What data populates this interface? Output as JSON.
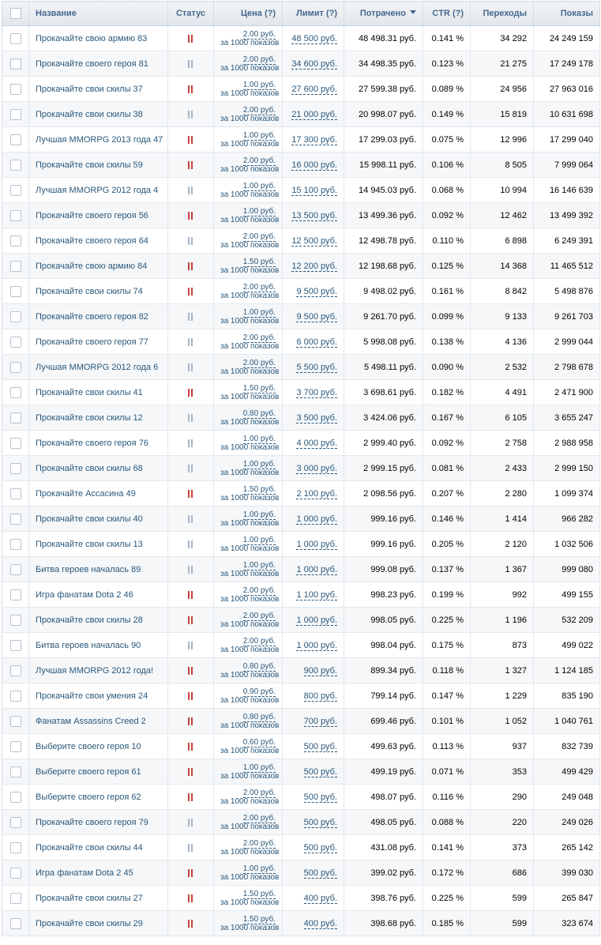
{
  "table": {
    "header": [
      "Название",
      "Статус",
      "Цена (?)",
      "Лимит (?)",
      "Потрачено",
      "CTR (?)",
      "Переходы",
      "Показы"
    ],
    "rows": [
      {
        "name": "Прокачайте свою армию 83",
        "status_color": "#c8413a",
        "price": "2.00 руб.",
        "price_note": "за 1000 показов",
        "limit": "48 500 руб.",
        "spent": "48 498.31 руб.",
        "ctr": "0.141 %",
        "clicks": "34 292",
        "shows": "24 249 159"
      },
      {
        "name": "Прокачайте своего героя 81",
        "status_color": "#a7b5c6",
        "price": "2.00 руб.",
        "price_note": "за 1000 показов",
        "limit": "34 600 руб.",
        "spent": "34 498.35 руб.",
        "ctr": "0.123 %",
        "clicks": "21 275",
        "shows": "17 249 178"
      },
      {
        "name": "Прокачайте свои скилы 37",
        "status_color": "#c8413a",
        "price": "1.00 руб.",
        "price_note": "за 1000 показов",
        "limit": "27 600 руб.",
        "spent": "27 599.38 руб.",
        "ctr": "0.089 %",
        "clicks": "24 956",
        "shows": "27 963 016"
      },
      {
        "name": "Прокачайте свои скилы 38",
        "status_color": "#a7b5c6",
        "price": "2.00 руб.",
        "price_note": "за 1000 показов",
        "limit": "21 000 руб.",
        "spent": "20 998.07 руб.",
        "ctr": "0.149 %",
        "clicks": "15 819",
        "shows": "10 631 698"
      },
      {
        "name": "Лучшая MMORPG 2013 года 47",
        "status_color": "#c8413a",
        "price": "1.00 руб.",
        "price_note": "за 1000 показов",
        "limit": "17 300 руб.",
        "spent": "17 299.03 руб.",
        "ctr": "0.075 %",
        "clicks": "12 996",
        "shows": "17 299 040"
      },
      {
        "name": "Прокачайте свои скилы 59",
        "status_color": "#c8413a",
        "price": "2.00 руб.",
        "price_note": "за 1000 показов",
        "limit": "16 000 руб.",
        "spent": "15 998.11 руб.",
        "ctr": "0.106 %",
        "clicks": "8 505",
        "shows": "7 999 064"
      },
      {
        "name": "Лучшая MMORPG 2012 года 4",
        "status_color": "#a7b5c6",
        "price": "1.00 руб.",
        "price_note": "за 1000 показов",
        "limit": "15 100 руб.",
        "spent": "14 945.03 руб.",
        "ctr": "0.068 %",
        "clicks": "10 994",
        "shows": "16 146 639"
      },
      {
        "name": "Прокачайте своего героя 56",
        "status_color": "#c8413a",
        "price": "1.00 руб.",
        "price_note": "за 1000 показов",
        "limit": "13 500 руб.",
        "spent": "13 499.36 руб.",
        "ctr": "0.092 %",
        "clicks": "12 462",
        "shows": "13 499 392"
      },
      {
        "name": "Прокачайте своего героя 64",
        "status_color": "#a7b5c6",
        "price": "2.00 руб.",
        "price_note": "за 1000 показов",
        "limit": "12 500 руб.",
        "spent": "12 498.78 руб.",
        "ctr": "0.110 %",
        "clicks": "6 898",
        "shows": "6 249 391"
      },
      {
        "name": "Прокачайте свою армию 84",
        "status_color": "#c8413a",
        "price": "1.50 руб.",
        "price_note": "за 1000 показов",
        "limit": "12 200 руб.",
        "spent": "12 198.68 руб.",
        "ctr": "0.125 %",
        "clicks": "14 368",
        "shows": "11 465 512"
      },
      {
        "name": "Прокачайте свои скилы 74",
        "status_color": "#c8413a",
        "price": "2.00 руб.",
        "price_note": "за 1000 показов",
        "limit": "9 500 руб.",
        "spent": "9 498.02 руб.",
        "ctr": "0.161 %",
        "clicks": "8 842",
        "shows": "5 498 876"
      },
      {
        "name": "Прокачайте своего героя 82",
        "status_color": "#a7b5c6",
        "price": "1.00 руб.",
        "price_note": "за 1000 показов",
        "limit": "9 500 руб.",
        "spent": "9 261.70 руб.",
        "ctr": "0.099 %",
        "clicks": "9 133",
        "shows": "9 261 703"
      },
      {
        "name": "Прокачайте своего героя 77",
        "status_color": "#a7b5c6",
        "price": "2.00 руб.",
        "price_note": "за 1000 показов",
        "limit": "6 000 руб.",
        "spent": "5 998.08 руб.",
        "ctr": "0.138 %",
        "clicks": "4 136",
        "shows": "2 999 044"
      },
      {
        "name": "Лучшая MMORPG 2012 года 6",
        "status_color": "#a7b5c6",
        "price": "2.00 руб.",
        "price_note": "за 1000 показов",
        "limit": "5 500 руб.",
        "spent": "5 498.11 руб.",
        "ctr": "0.090 %",
        "clicks": "2 532",
        "shows": "2 798 678"
      },
      {
        "name": "Прокачайте свои скилы 41",
        "status_color": "#c8413a",
        "price": "1.50 руб.",
        "price_note": "за 1000 показов",
        "limit": "3 700 руб.",
        "spent": "3 698.61 руб.",
        "ctr": "0.182 %",
        "clicks": "4 491",
        "shows": "2 471 900"
      },
      {
        "name": "Прокачайте свои скилы 12",
        "status_color": "#a7b5c6",
        "price": "0.80 руб.",
        "price_note": "за 1000 показов",
        "limit": "3 500 руб.",
        "spent": "3 424.06 руб.",
        "ctr": "0.167 %",
        "clicks": "6 105",
        "shows": "3 655 247"
      },
      {
        "name": "Прокачайте своего героя 76",
        "status_color": "#a7b5c6",
        "price": "1.00 руб.",
        "price_note": "за 1000 показов",
        "limit": "4 000 руб.",
        "spent": "2 999.40 руб.",
        "ctr": "0.092 %",
        "clicks": "2 758",
        "shows": "2 988 958"
      },
      {
        "name": "Прокачайте свои скилы 68",
        "status_color": "#a7b5c6",
        "price": "1.00 руб.",
        "price_note": "за 1000 показов",
        "limit": "3 000 руб.",
        "spent": "2 999.15 руб.",
        "ctr": "0.081 %",
        "clicks": "2 433",
        "shows": "2 999 150"
      },
      {
        "name": "Прокачайте Ассасина 49",
        "status_color": "#c8413a",
        "price": "1.50 руб.",
        "price_note": "за 1000 показов",
        "limit": "2 100 руб.",
        "spent": "2 098.56 руб.",
        "ctr": "0.207 %",
        "clicks": "2 280",
        "shows": "1 099 374"
      },
      {
        "name": "Прокачайте свои скилы 40",
        "status_color": "#a7b5c6",
        "price": "1.00 руб.",
        "price_note": "за 1000 показов",
        "limit": "1 000 руб.",
        "spent": "999.16 руб.",
        "ctr": "0.146 %",
        "clicks": "1 414",
        "shows": "966 282"
      },
      {
        "name": "Прокачайте свои скилы 13",
        "status_color": "#a7b5c6",
        "price": "1.00 руб.",
        "price_note": "за 1000 показов",
        "limit": "1 000 руб.",
        "spent": "999.16 руб.",
        "ctr": "0.205 %",
        "clicks": "2 120",
        "shows": "1 032 506"
      },
      {
        "name": "Битва героев началась 89",
        "status_color": "#a7b5c6",
        "price": "1.00 руб.",
        "price_note": "за 1000 показов",
        "limit": "1 000 руб.",
        "spent": "999.08 руб.",
        "ctr": "0.137 %",
        "clicks": "1 367",
        "shows": "999 080"
      },
      {
        "name": "Игра фанатам Dota 2 46",
        "status_color": "#c8413a",
        "price": "2.00 руб.",
        "price_note": "за 1000 показов",
        "limit": "1 100 руб.",
        "spent": "998.23 руб.",
        "ctr": "0.199 %",
        "clicks": "992",
        "shows": "499 155"
      },
      {
        "name": "Прокачайте свои скилы 28",
        "status_color": "#c8413a",
        "price": "2.00 руб.",
        "price_note": "за 1000 показов",
        "limit": "1 000 руб.",
        "spent": "998.05 руб.",
        "ctr": "0.225 %",
        "clicks": "1 196",
        "shows": "532 209"
      },
      {
        "name": "Битва героев началась 90",
        "status_color": "#a7b5c6",
        "price": "2.00 руб.",
        "price_note": "за 1000 показов",
        "limit": "1 000 руб.",
        "spent": "998.04 руб.",
        "ctr": "0.175 %",
        "clicks": "873",
        "shows": "499 022"
      },
      {
        "name": "Лучшая MMORPG 2012 года!",
        "status_color": "#c8413a",
        "price": "0.80 руб.",
        "price_note": "за 1000 показов",
        "limit": "900 руб.",
        "spent": "899.34 руб.",
        "ctr": "0.118 %",
        "clicks": "1 327",
        "shows": "1 124 185"
      },
      {
        "name": "Прокачайте свои умения 24",
        "status_color": "#c8413a",
        "price": "0.90 руб.",
        "price_note": "за 1000 показов",
        "limit": "800 руб.",
        "spent": "799.14 руб.",
        "ctr": "0.147 %",
        "clicks": "1 229",
        "shows": "835 190"
      },
      {
        "name": "Фанатам Assassins Creed 2",
        "status_color": "#c8413a",
        "price": "0.80 руб.",
        "price_note": "за 1000 показов",
        "limit": "700 руб.",
        "spent": "699.46 руб.",
        "ctr": "0.101 %",
        "clicks": "1 052",
        "shows": "1 040 761"
      },
      {
        "name": "Выберите своего героя 10",
        "status_color": "#c8413a",
        "price": "0.60 руб.",
        "price_note": "за 1000 показов",
        "limit": "500 руб.",
        "spent": "499.63 руб.",
        "ctr": "0.113 %",
        "clicks": "937",
        "shows": "832 739"
      },
      {
        "name": "Выберите своего героя 61",
        "status_color": "#c8413a",
        "price": "1.00 руб.",
        "price_note": "за 1000 показов",
        "limit": "500 руб.",
        "spent": "499.19 руб.",
        "ctr": "0.071 %",
        "clicks": "353",
        "shows": "499 429"
      },
      {
        "name": "Выберите своего героя 62",
        "status_color": "#c8413a",
        "price": "2.00 руб.",
        "price_note": "за 1000 показов",
        "limit": "500 руб.",
        "spent": "498.07 руб.",
        "ctr": "0.116 %",
        "clicks": "290",
        "shows": "249 048"
      },
      {
        "name": "Прокачайте своего героя 79",
        "status_color": "#a7b5c6",
        "price": "2.00 руб.",
        "price_note": "за 1000 показов",
        "limit": "500 руб.",
        "spent": "498.05 руб.",
        "ctr": "0.088 %",
        "clicks": "220",
        "shows": "249 026"
      },
      {
        "name": "Прокачайте свои скилы 44",
        "status_color": "#a7b5c6",
        "price": "2.00 руб.",
        "price_note": "за 1000 показов",
        "limit": "500 руб.",
        "spent": "431.08 руб.",
        "ctr": "0.141 %",
        "clicks": "373",
        "shows": "265 142"
      },
      {
        "name": "Игра фанатам Dota 2 45",
        "status_color": "#c8413a",
        "price": "1.00 руб.",
        "price_note": "за 1000 показов",
        "limit": "500 руб.",
        "spent": "399.02 руб.",
        "ctr": "0.172 %",
        "clicks": "686",
        "shows": "399 030"
      },
      {
        "name": "Прокачайте свои скилы 27",
        "status_color": "#c8413a",
        "price": "1.50 руб.",
        "price_note": "за 1000 показов",
        "limit": "400 руб.",
        "spent": "398.76 руб.",
        "ctr": "0.225 %",
        "clicks": "599",
        "shows": "265 847"
      },
      {
        "name": "Прокачайте свои скилы 29",
        "status_color": "#c8413a",
        "price": "1.50 руб.",
        "price_note": "за 1000 показов",
        "limit": "400 руб.",
        "spent": "398.68 руб.",
        "ctr": "0.185 %",
        "clicks": "599",
        "shows": "323 674"
      }
    ]
  }
}
